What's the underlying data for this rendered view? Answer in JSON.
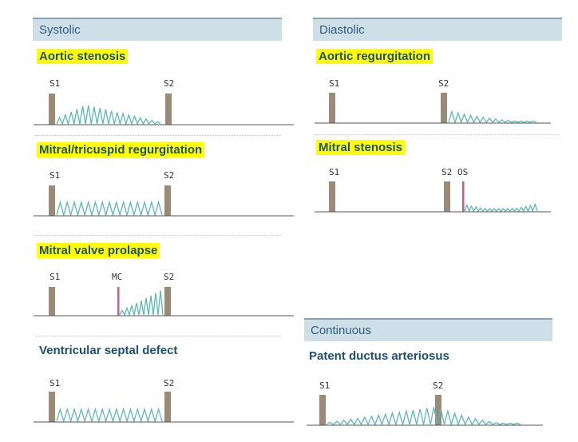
{
  "sections": {
    "systolic": "Systolic",
    "diastolic": "Diastolic",
    "continuous": "Continuous"
  },
  "murmurs": {
    "aortic_stenosis": {
      "title": "Aortic stenosis",
      "s1": "S1",
      "s2": "S2",
      "shape": "crescendo-decrescendo"
    },
    "mitral_tricuspid_regurgitation": {
      "title": "Mitral/tricuspid regurgitation",
      "s1": "S1",
      "s2": "S2",
      "shape": "holosystolic"
    },
    "mitral_valve_prolapse": {
      "title": "Mitral valve prolapse",
      "s1": "S1",
      "mc": "MC",
      "s2": "S2",
      "shape": "late-systolic crescendo after click"
    },
    "ventricular_septal_defect": {
      "title": "Ventricular septal defect",
      "s1": "S1",
      "s2": "S2",
      "shape": "holosystolic"
    },
    "aortic_regurgitation": {
      "title": "Aortic regurgitation",
      "s1": "S1",
      "s2": "S2",
      "shape": "early diastolic decrescendo"
    },
    "mitral_stenosis": {
      "title": "Mitral stenosis",
      "s1": "S1",
      "s2": "S2",
      "os": "OS",
      "shape": "opening snap then diastolic rumble"
    },
    "patent_ductus_arteriosus": {
      "title": "Patent ductus arteriosus",
      "s1": "S1",
      "s2": "S2",
      "shape": "continuous machinery"
    }
  },
  "colors": {
    "header_bg": "#cfdfe8",
    "header_text": "#2e5f7f",
    "title_text": "#1e4f72",
    "highlight": "#ffff00",
    "heart_sound": "#9a8b79",
    "murmur_wave": "#5fb6b9",
    "click_snap": "#d0569a"
  }
}
